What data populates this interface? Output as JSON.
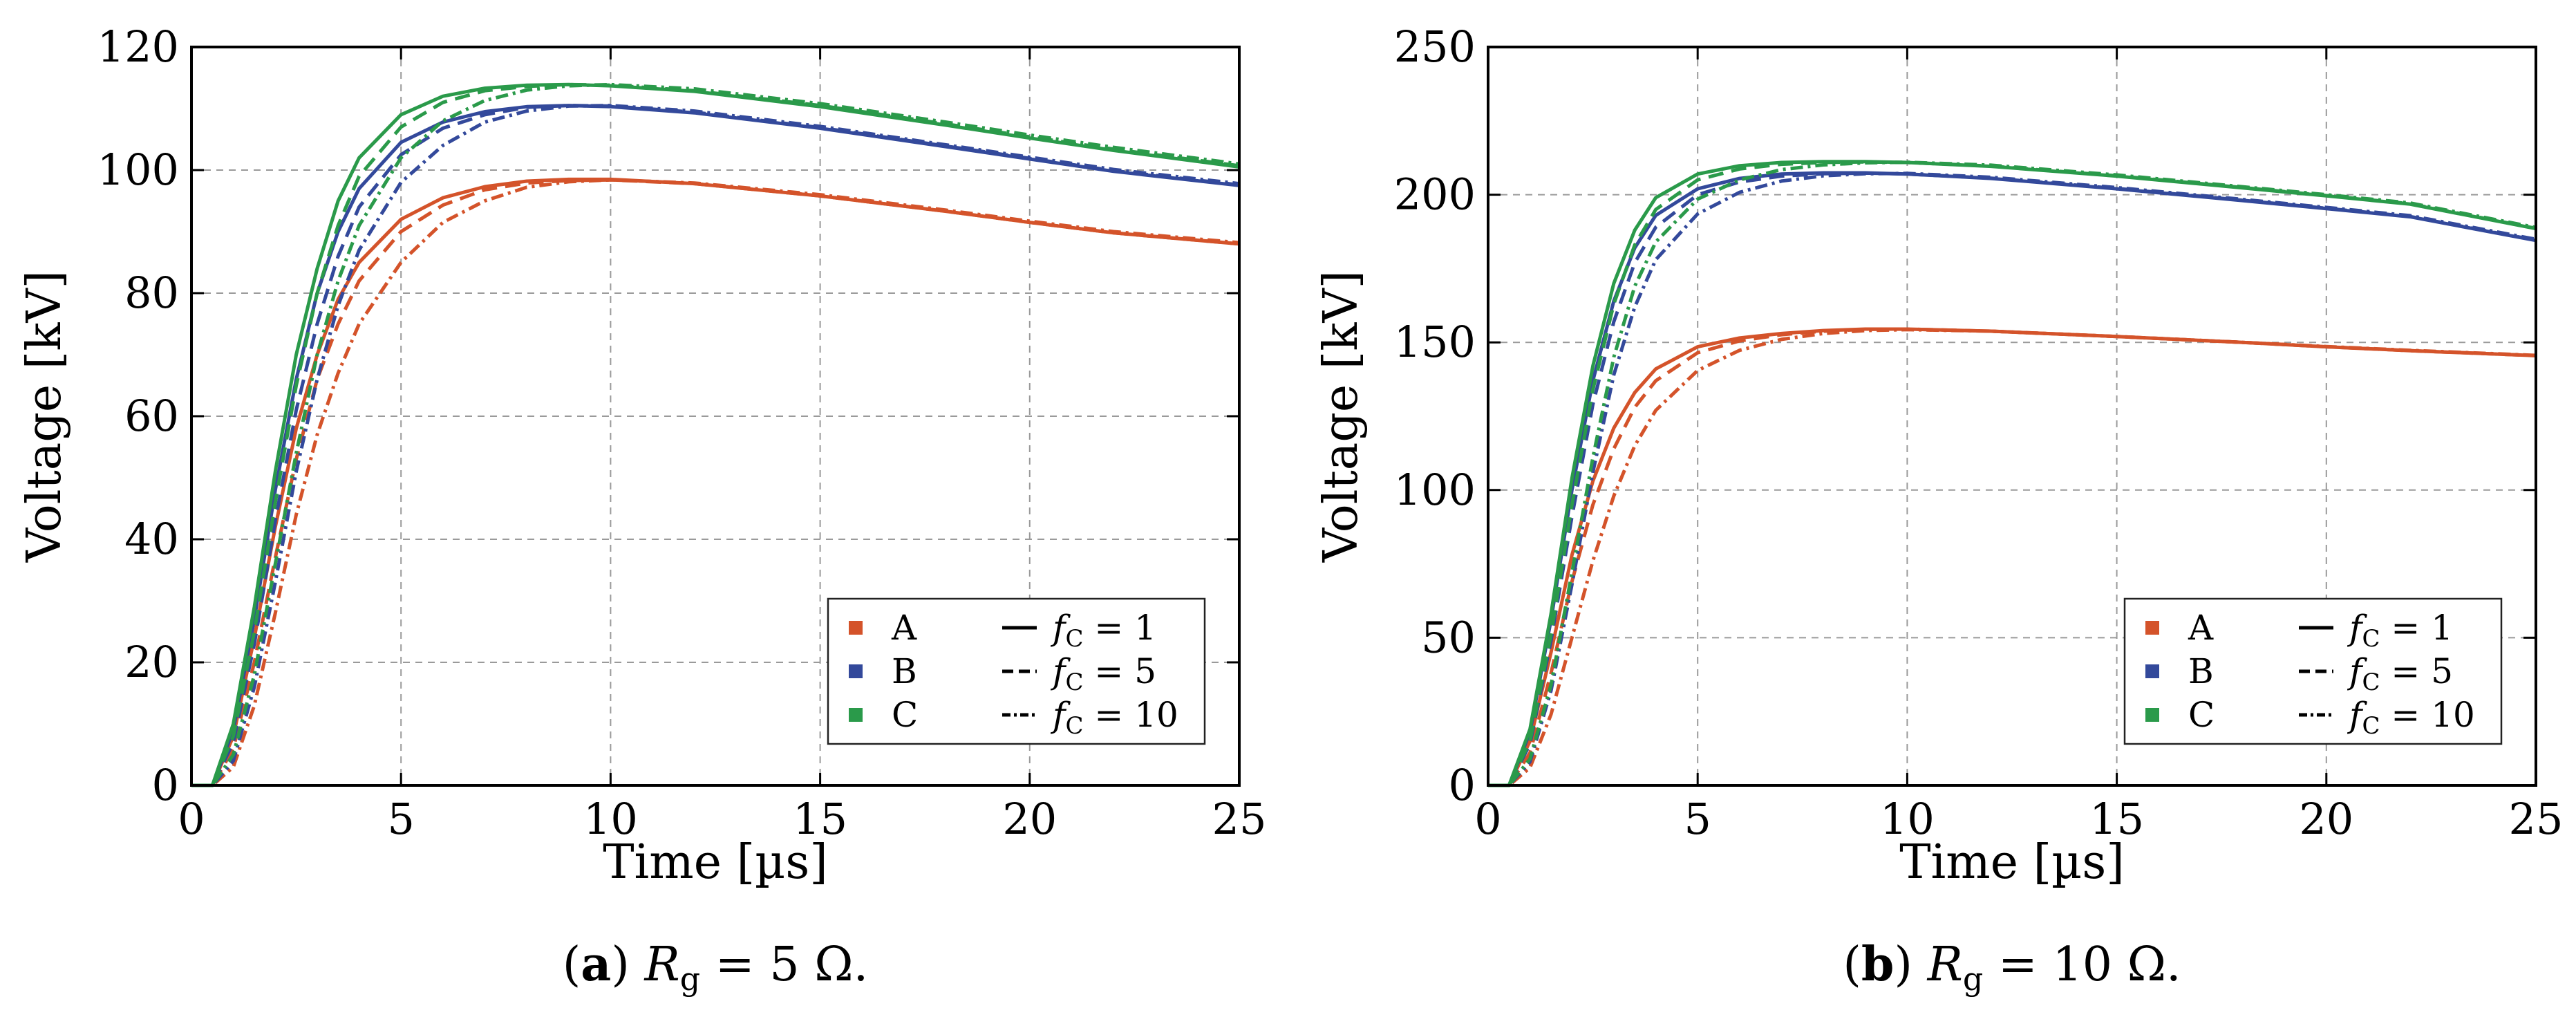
{
  "colors": {
    "A": "#d4532a",
    "B": "#33499b",
    "C": "#2a9a4a"
  },
  "chart_data": [
    {
      "type": "line",
      "panel_label": "(a)",
      "caption": "R_g = 5 Ω.",
      "caption_parts": {
        "bold": "a",
        "symbol": "R",
        "subscript": "g",
        "rest": " = 5 Ω."
      },
      "xlabel": "Time [µs]",
      "ylabel": "Voltage [kV]",
      "xlim": [
        0,
        25
      ],
      "ylim": [
        0,
        120
      ],
      "xticks": [
        0,
        5,
        10,
        15,
        20,
        25
      ],
      "yticks": [
        0,
        20,
        40,
        60,
        80,
        100,
        120
      ],
      "grid": true,
      "legend_position": "bottom-right",
      "legend": {
        "cables": [
          "A",
          "B",
          "C"
        ],
        "styles": [
          {
            "symbol": "f",
            "subscript": "C",
            "rest": " = 1",
            "dash": "solid"
          },
          {
            "symbol": "f",
            "subscript": "C",
            "rest": " = 5",
            "dash": "dashed"
          },
          {
            "symbol": "f",
            "subscript": "C",
            "rest": " = 10",
            "dash": "dashdot"
          }
        ]
      },
      "series": [
        {
          "name": "A, f_C = 1",
          "cable": "A",
          "dash": "solid",
          "x": [
            0.5,
            1,
            1.5,
            2,
            2.5,
            3,
            3.5,
            4,
            5,
            6,
            7,
            8,
            9,
            10,
            12,
            15,
            18,
            20,
            22,
            25
          ],
          "y": [
            0,
            8,
            24,
            42,
            58,
            70,
            79,
            85,
            92,
            95.5,
            97.3,
            98.2,
            98.5,
            98.5,
            97.8,
            95.8,
            93.3,
            91.5,
            89.8,
            88
          ]
        },
        {
          "name": "A, f_C = 5",
          "cable": "A",
          "dash": "dashed",
          "x": [
            0.5,
            1,
            1.5,
            2,
            2.5,
            3,
            3.5,
            4,
            5,
            6,
            7,
            8,
            9,
            10,
            12,
            15,
            18,
            20,
            22,
            25
          ],
          "y": [
            0,
            6,
            20,
            37,
            53,
            66,
            75,
            82,
            90,
            94.3,
            96.8,
            97.9,
            98.3,
            98.4,
            97.8,
            95.8,
            93.3,
            91.5,
            89.8,
            88
          ]
        },
        {
          "name": "A, f_C = 10",
          "cable": "A",
          "dash": "dashdot",
          "x": [
            0.5,
            1,
            1.5,
            2,
            2.5,
            3,
            3.5,
            4,
            5,
            6,
            7,
            8,
            9,
            10,
            12,
            15,
            18,
            20,
            22,
            25
          ],
          "y": [
            0,
            3,
            13,
            28,
            44,
            57,
            67,
            75,
            85,
            91.5,
            95,
            97.2,
            98.1,
            98.4,
            97.9,
            96,
            93.5,
            91.7,
            90,
            88.2
          ]
        },
        {
          "name": "B, f_C = 1",
          "cable": "B",
          "dash": "solid",
          "x": [
            0.5,
            1,
            1.5,
            2,
            2.5,
            3,
            3.5,
            4,
            5,
            6,
            7,
            8,
            9,
            10,
            12,
            15,
            18,
            20,
            22,
            25
          ],
          "y": [
            0,
            9,
            27,
            48,
            66,
            80,
            90,
            97,
            104.5,
            107.8,
            109.5,
            110.3,
            110.5,
            110.3,
            109.3,
            106.8,
            103.8,
            101.8,
            99.8,
            97.5
          ]
        },
        {
          "name": "B, f_C = 5",
          "cable": "B",
          "dash": "dashed",
          "x": [
            0.5,
            1,
            1.5,
            2,
            2.5,
            3,
            3.5,
            4,
            5,
            6,
            7,
            8,
            9,
            10,
            12,
            15,
            18,
            20,
            22,
            25
          ],
          "y": [
            0,
            7,
            23,
            43,
            61,
            75,
            86,
            94,
            102.5,
            106.8,
            109,
            110.2,
            110.5,
            110.4,
            109.4,
            106.9,
            103.9,
            101.9,
            99.9,
            97.6
          ]
        },
        {
          "name": "B, f_C = 10",
          "cable": "B",
          "dash": "dashdot",
          "x": [
            0.5,
            1,
            1.5,
            2,
            2.5,
            3,
            3.5,
            4,
            5,
            6,
            7,
            8,
            9,
            10,
            12,
            15,
            18,
            20,
            22,
            25
          ],
          "y": [
            0,
            4,
            16,
            33,
            51,
            66,
            78,
            87,
            98,
            104,
            107.8,
            109.6,
            110.4,
            110.5,
            109.6,
            107.1,
            104.1,
            102.1,
            100.1,
            97.8
          ]
        },
        {
          "name": "C, f_C = 1",
          "cable": "C",
          "dash": "solid",
          "x": [
            0.5,
            1,
            1.5,
            2,
            2.5,
            3,
            3.5,
            4,
            5,
            6,
            7,
            8,
            9,
            10,
            12,
            15,
            18,
            20,
            22,
            25
          ],
          "y": [
            0,
            10,
            29,
            51,
            70,
            84,
            95,
            102,
            109,
            112,
            113.3,
            113.8,
            113.9,
            113.7,
            112.8,
            110.3,
            107.3,
            105.2,
            103.2,
            100.5
          ]
        },
        {
          "name": "C, f_C = 5",
          "cable": "C",
          "dash": "dashed",
          "x": [
            0.5,
            1,
            1.5,
            2,
            2.5,
            3,
            3.5,
            4,
            5,
            6,
            7,
            8,
            9,
            10,
            12,
            15,
            18,
            20,
            22,
            25
          ],
          "y": [
            0,
            8,
            25,
            46,
            65,
            80,
            91,
            99,
            107,
            111,
            112.9,
            113.6,
            113.9,
            113.8,
            112.9,
            110.5,
            107.5,
            105.4,
            103.4,
            100.7
          ]
        },
        {
          "name": "C, f_C = 10",
          "cable": "C",
          "dash": "dashdot",
          "x": [
            0.5,
            1,
            1.5,
            2,
            2.5,
            3,
            3.5,
            4,
            5,
            6,
            7,
            8,
            9,
            10,
            12,
            15,
            18,
            20,
            22,
            25
          ],
          "y": [
            0,
            5,
            18,
            36,
            54,
            70,
            82,
            91,
            102,
            108,
            111.3,
            113,
            113.7,
            113.9,
            113.2,
            110.8,
            107.8,
            105.7,
            103.7,
            101
          ]
        }
      ]
    },
    {
      "type": "line",
      "panel_label": "(b)",
      "caption": "R_g = 10 Ω.",
      "caption_parts": {
        "bold": "b",
        "symbol": "R",
        "subscript": "g",
        "rest": " = 10 Ω."
      },
      "xlabel": "Time [µs]",
      "ylabel": "Voltage [kV]",
      "xlim": [
        0,
        25
      ],
      "ylim": [
        0,
        250
      ],
      "xticks": [
        0,
        5,
        10,
        15,
        20,
        25
      ],
      "yticks": [
        0,
        50,
        100,
        150,
        200,
        250
      ],
      "grid": true,
      "legend_position": "bottom-right",
      "legend": {
        "cables": [
          "A",
          "B",
          "C"
        ],
        "styles": [
          {
            "symbol": "f",
            "subscript": "C",
            "rest": " = 1",
            "dash": "solid"
          },
          {
            "symbol": "f",
            "subscript": "C",
            "rest": " = 5",
            "dash": "dashed"
          },
          {
            "symbol": "f",
            "subscript": "C",
            "rest": " = 10",
            "dash": "dashdot"
          }
        ]
      },
      "series": [
        {
          "name": "A, f_C = 1",
          "cable": "A",
          "dash": "solid",
          "x": [
            0.5,
            1,
            1.5,
            2,
            2.5,
            3,
            3.5,
            4,
            5,
            6,
            7,
            8,
            9,
            10,
            12,
            15,
            18,
            20,
            22,
            25
          ],
          "y": [
            0,
            15,
            45,
            78,
            103,
            121,
            133,
            141,
            148.5,
            151.5,
            153,
            154,
            154.5,
            154.5,
            153.8,
            152,
            150,
            148.5,
            147.2,
            145.5
          ]
        },
        {
          "name": "A, f_C = 5",
          "cable": "A",
          "dash": "dashed",
          "x": [
            0.5,
            1,
            1.5,
            2,
            2.5,
            3,
            3.5,
            4,
            5,
            6,
            7,
            8,
            9,
            10,
            12,
            15,
            18,
            20,
            22,
            25
          ],
          "y": [
            0,
            11,
            38,
            69,
            95,
            114,
            128,
            137,
            146.5,
            150.5,
            152.6,
            153.8,
            154.4,
            154.5,
            153.8,
            152,
            150,
            148.5,
            147.2,
            145.5
          ]
        },
        {
          "name": "A, f_C = 10",
          "cable": "A",
          "dash": "dashdot",
          "x": [
            0.5,
            1,
            1.5,
            2,
            2.5,
            3,
            3.5,
            4,
            5,
            6,
            7,
            8,
            9,
            10,
            12,
            15,
            18,
            20,
            22,
            25
          ],
          "y": [
            0,
            6,
            24,
            50,
            76,
            98,
            115,
            127,
            140.5,
            147.3,
            151,
            153,
            154,
            154.3,
            153.8,
            152,
            150,
            148.6,
            147.3,
            145.6
          ]
        },
        {
          "name": "B, f_C = 1",
          "cable": "B",
          "dash": "solid",
          "x": [
            0.5,
            1,
            1.5,
            2,
            2.5,
            3,
            3.5,
            4,
            5,
            6,
            7,
            8,
            9,
            10,
            12,
            15,
            18,
            20,
            22,
            25
          ],
          "y": [
            0,
            18,
            56,
            100,
            137,
            164,
            182,
            193,
            202,
            205.5,
            207,
            207.4,
            207.4,
            207,
            205.5,
            202,
            198,
            195.3,
            192.5,
            184.5
          ]
        },
        {
          "name": "B, f_C = 5",
          "cable": "B",
          "dash": "dashed",
          "x": [
            0.5,
            1,
            1.5,
            2,
            2.5,
            3,
            3.5,
            4,
            5,
            6,
            7,
            8,
            9,
            10,
            12,
            15,
            18,
            20,
            22,
            25
          ],
          "y": [
            0,
            14,
            49,
            91,
            129,
            157,
            177,
            189,
            200,
            204.3,
            206.3,
            207.1,
            207.3,
            207,
            205.6,
            202.1,
            198.1,
            195.4,
            192.6,
            184.6
          ]
        },
        {
          "name": "B, f_C = 10",
          "cable": "B",
          "dash": "dashdot",
          "x": [
            0.5,
            1,
            1.5,
            2,
            2.5,
            3,
            3.5,
            4,
            5,
            6,
            7,
            8,
            9,
            10,
            12,
            15,
            18,
            20,
            22,
            25
          ],
          "y": [
            0,
            8,
            32,
            68,
            106,
            139,
            162,
            178,
            193.5,
            200.8,
            204.6,
            206.4,
            207.1,
            207.2,
            205.9,
            202.4,
            198.4,
            195.7,
            192.9,
            184.9
          ]
        },
        {
          "name": "C, f_C = 1",
          "cable": "C",
          "dash": "solid",
          "x": [
            0.5,
            1,
            1.5,
            2,
            2.5,
            3,
            3.5,
            4,
            5,
            6,
            7,
            8,
            9,
            10,
            12,
            15,
            18,
            20,
            22,
            25
          ],
          "y": [
            0,
            19,
            58,
            104,
            142,
            170,
            188,
            199,
            207,
            209.8,
            210.9,
            211.2,
            211.2,
            210.9,
            209.6,
            206.3,
            202.3,
            199.6,
            196.8,
            188.5
          ]
        },
        {
          "name": "C, f_C = 5",
          "cable": "C",
          "dash": "dashed",
          "x": [
            0.5,
            1,
            1.5,
            2,
            2.5,
            3,
            3.5,
            4,
            5,
            6,
            7,
            8,
            9,
            10,
            12,
            15,
            18,
            20,
            22,
            25
          ],
          "y": [
            0,
            15,
            51,
            95,
            134,
            163,
            183,
            195,
            205,
            208.7,
            210.3,
            210.9,
            211.1,
            210.9,
            209.7,
            206.4,
            202.4,
            199.7,
            196.9,
            188.6
          ]
        },
        {
          "name": "C, f_C = 10",
          "cable": "C",
          "dash": "dashdot",
          "x": [
            0.5,
            1,
            1.5,
            2,
            2.5,
            3,
            3.5,
            4,
            5,
            6,
            7,
            8,
            9,
            10,
            12,
            15,
            18,
            20,
            22,
            25
          ],
          "y": [
            0,
            9,
            34,
            72,
            111,
            145,
            169,
            184,
            198.5,
            205,
            208.5,
            210.1,
            210.8,
            211,
            210,
            206.7,
            202.7,
            200,
            197.2,
            188.9
          ]
        }
      ]
    }
  ]
}
